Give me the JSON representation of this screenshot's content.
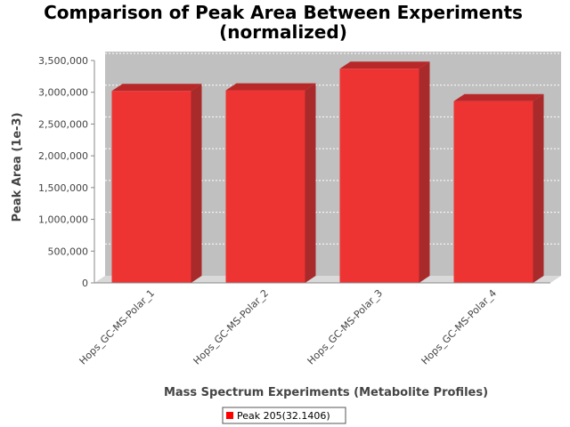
{
  "chart_data": {
    "type": "bar",
    "title_line1": "Comparison of Peak Area Between Experiments",
    "title_line2": "(normalized)",
    "xlabel": "Mass Spectrum Experiments (Metabolite Profiles)",
    "ylabel": "Peak Area (1e-3)",
    "categories": [
      "Hops_GC-MS-Polar_1",
      "Hops_GC-MS-Polar_2",
      "Hops_GC-MS-Polar_3",
      "Hops_GC-MS-Polar_4"
    ],
    "series": [
      {
        "name": "Peak 205(32.1406)",
        "values": [
          3020000,
          3030000,
          3370000,
          2860000
        ]
      }
    ],
    "ylim": [
      0,
      3500000
    ],
    "yticks": [
      0,
      500000,
      1000000,
      1500000,
      2000000,
      2500000,
      3000000,
      3500000
    ],
    "ytick_labels": [
      "0",
      "500,000",
      "1,000,000",
      "1,500,000",
      "2,000,000",
      "2,500,000",
      "3,000,000",
      "3,500,000"
    ],
    "grid": true,
    "legend_position": "bottom",
    "colors": {
      "bar_front": "#ee3333",
      "bar_top": "#b82828",
      "bar_side": "#a82a2a",
      "plot_back": "#c0c0c0",
      "plot_floor": "#d9d9d9",
      "legend_swatch": "#ff0000"
    }
  }
}
